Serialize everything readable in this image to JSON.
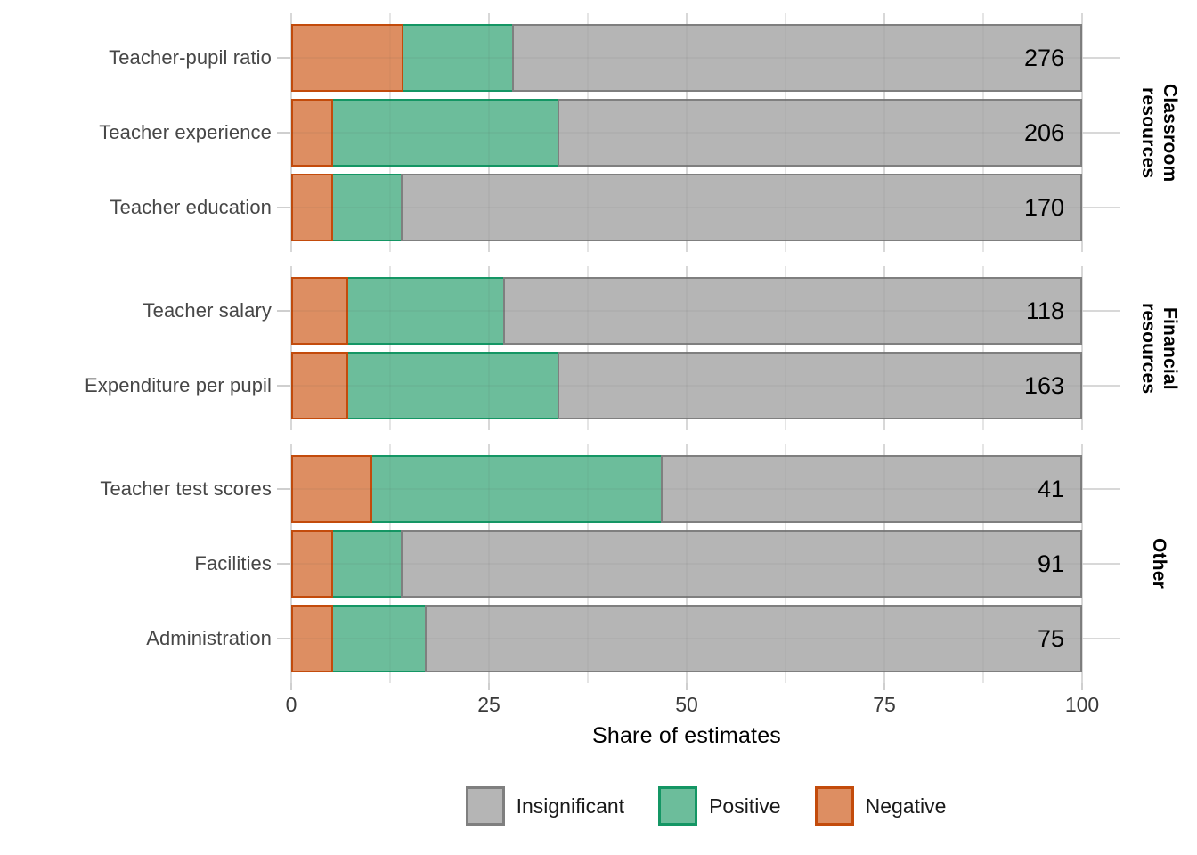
{
  "colors": {
    "background": "#ffffff",
    "insignificant_fill": "#B5B5B5",
    "insignificant_stroke": "#7F7F7F",
    "positive_fill": "#6CBD9B",
    "positive_stroke": "#149664",
    "negative_fill": "#DD8E62",
    "negative_stroke": "#C34B0B",
    "grid_major": "#E1E1E1",
    "grid_minor": "#ECECEC",
    "grid_overlay_major": "rgba(70,70,70,0.055)",
    "grid_overlay_minor": "rgba(70,70,70,0.035)",
    "tick_mark": "#cfcfcf",
    "axis_text": "#3a3a3a",
    "category_text": "#474747",
    "count_text": "#000000"
  },
  "chart_data": {
    "type": "bar",
    "orientation": "horizontal",
    "stacked": true,
    "title": "",
    "xlabel": "Share of estimates",
    "ylabel": "",
    "xlim": [
      0,
      100
    ],
    "grid": {
      "x_major": [
        0,
        25,
        50,
        75,
        100
      ],
      "x_minor": [
        12.5,
        37.5,
        62.5,
        87.5
      ],
      "y_major": "at each category center"
    },
    "x_ticks": [
      {
        "value": 0,
        "label": "0"
      },
      {
        "value": 25,
        "label": "25"
      },
      {
        "value": 50,
        "label": "50"
      },
      {
        "value": 75,
        "label": "75"
      },
      {
        "value": 100,
        "label": "100"
      }
    ],
    "legend": {
      "position": "bottom",
      "entries": [
        {
          "label": "Insignificant",
          "series": "insignificant"
        },
        {
          "label": "Positive",
          "series": "positive"
        },
        {
          "label": "Negative",
          "series": "negative"
        }
      ]
    },
    "series_order_in_bar": [
      "negative",
      "positive",
      "insignificant"
    ],
    "facets": [
      {
        "label": "Classroom resources",
        "label_lines": [
          "Classroom",
          "resources"
        ],
        "rows": [
          {
            "category": "Teacher-pupil ratio",
            "negative": 14.2,
            "positive": 14.0,
            "insignificant": 71.8,
            "count": "276"
          },
          {
            "category": "Teacher experience",
            "negative": 5.3,
            "positive": 28.7,
            "insignificant": 66.0,
            "count": "206"
          },
          {
            "category": "Teacher education",
            "negative": 5.3,
            "positive": 8.8,
            "insignificant": 85.9,
            "count": "170"
          }
        ]
      },
      {
        "label": "Financial resources",
        "label_lines": [
          "Financial",
          "resources"
        ],
        "rows": [
          {
            "category": "Teacher salary",
            "negative": 7.2,
            "positive": 19.9,
            "insignificant": 72.9,
            "count": "118"
          },
          {
            "category": "Expenditure per pupil",
            "negative": 7.2,
            "positive": 26.7,
            "insignificant": 66.1,
            "count": "163"
          }
        ]
      },
      {
        "label": "Other",
        "label_lines": [
          "Other"
        ],
        "rows": [
          {
            "category": "Teacher test scores",
            "negative": 10.2,
            "positive": 36.8,
            "insignificant": 53.0,
            "count": "41"
          },
          {
            "category": "Facilities",
            "negative": 5.3,
            "positive": 8.8,
            "insignificant": 85.9,
            "count": "91"
          },
          {
            "category": "Administration",
            "negative": 5.3,
            "positive": 11.9,
            "insignificant": 82.8,
            "count": "75"
          }
        ]
      }
    ]
  }
}
